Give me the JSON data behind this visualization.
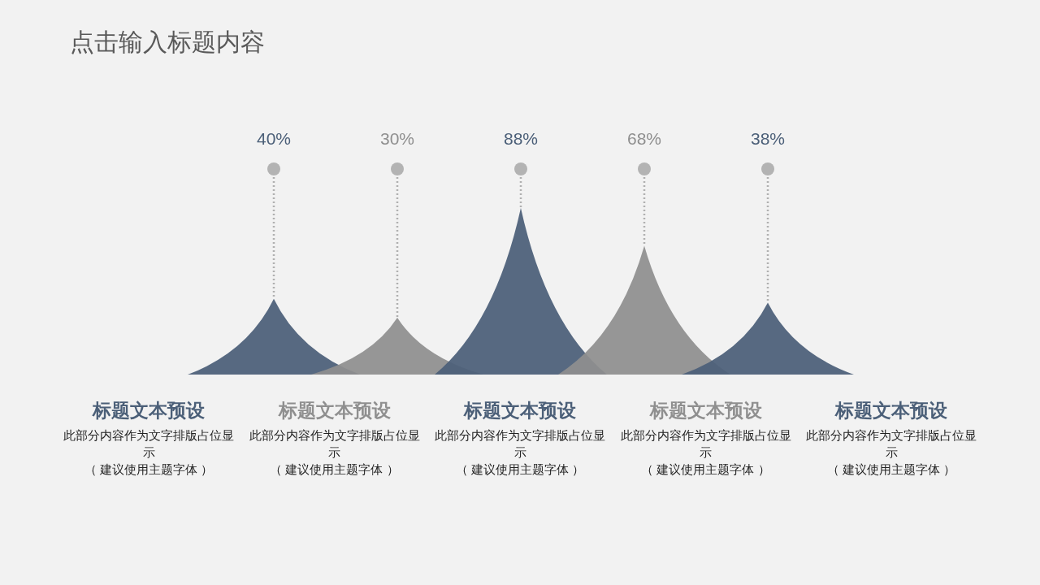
{
  "chart_data": {
    "type": "other",
    "title": "点击输入标题内容",
    "categories": [
      "标题文本预设",
      "标题文本预设",
      "标题文本预设",
      "标题文本预设",
      "标题文本预设"
    ],
    "values": [
      40,
      30,
      88,
      68,
      38
    ],
    "value_labels": [
      "40%",
      "30%",
      "88%",
      "68%",
      "38%"
    ],
    "colors": [
      "#4b5f78",
      "#8f8f8f",
      "#4b5f78",
      "#8f8f8f",
      "#4b5f78"
    ],
    "annotations": [
      "此部分内容作为文字排版占位显示",
      "（ 建议使用主题字体 ）",
      "此部分内容作为文字排版占位显示",
      "（ 建议使用主题字体 ）",
      "此部分内容作为文字排版占位显示",
      "（ 建议使用主题字体 ）",
      "此部分内容作为文字排版占位显示",
      "（ 建议使用主题字体 ）",
      "此部分内容作为文字排版占位显示",
      "（ 建议使用主题字体 ）"
    ]
  }
}
